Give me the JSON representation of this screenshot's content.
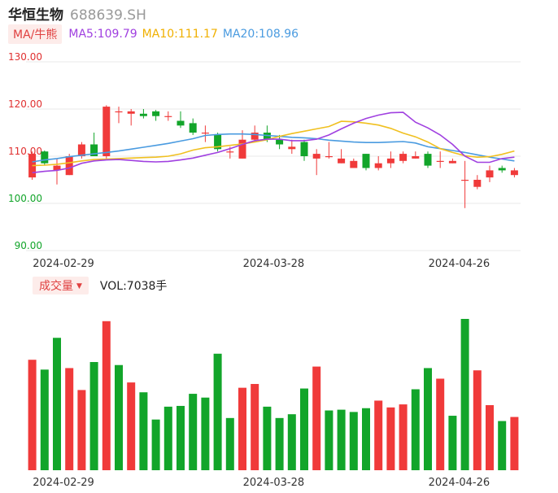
{
  "header": {
    "name": "华恒生物",
    "code": "688639.SH"
  },
  "ma_legend": {
    "button_label": "MA/牛熊",
    "ma5": "MA5:109.79",
    "ma10": "MA10:111.17",
    "ma20": "MA20:108.96"
  },
  "volume_legend": {
    "button_label": "成交量",
    "arrow": "▼",
    "vol_text": "VOL:7038手"
  },
  "colors": {
    "up": "#f03a3a",
    "down": "#12a52a",
    "ma5": "#a040e0",
    "ma10": "#f0c020",
    "ma20": "#4a9be0",
    "grid": "#e8e8e8"
  },
  "chart_data": [
    {
      "type": "candlestick",
      "y_axis": {
        "min": 90,
        "max": 130,
        "ticks": [
          "90.00",
          "100.00",
          "110.00",
          "120.00",
          "130.00"
        ]
      },
      "x_labels": [
        {
          "index": 2,
          "label": "2024-02-29"
        },
        {
          "index": 19,
          "label": "2024-03-28"
        },
        {
          "index": 34,
          "label": "2024-04-26"
        }
      ],
      "candles": [
        {
          "o": 105.5,
          "c": 110.5,
          "h": 111.0,
          "l": 105.0
        },
        {
          "o": 111.0,
          "c": 108.5,
          "h": 111.2,
          "l": 108.0
        },
        {
          "o": 107.0,
          "c": 108.0,
          "h": 109.5,
          "l": 104.0
        },
        {
          "o": 106.0,
          "c": 110.0,
          "h": 110.5,
          "l": 106.0
        },
        {
          "o": 110.0,
          "c": 112.5,
          "h": 113.0,
          "l": 109.5
        },
        {
          "o": 112.5,
          "c": 110.0,
          "h": 115.0,
          "l": 110.0
        },
        {
          "o": 110.0,
          "c": 120.5,
          "h": 120.8,
          "l": 109.5
        },
        {
          "o": 119.5,
          "c": 119.5,
          "h": 120.5,
          "l": 117.0
        },
        {
          "o": 119.0,
          "c": 119.5,
          "h": 120.0,
          "l": 116.5
        },
        {
          "o": 119.0,
          "c": 118.5,
          "h": 120.0,
          "l": 118.0
        },
        {
          "o": 119.5,
          "c": 118.5,
          "h": 119.8,
          "l": 117.5
        },
        {
          "o": 118.5,
          "c": 118.5,
          "h": 119.5,
          "l": 117.5
        },
        {
          "o": 117.5,
          "c": 116.5,
          "h": 119.5,
          "l": 116.0
        },
        {
          "o": 117.0,
          "c": 115.0,
          "h": 118.0,
          "l": 114.5
        },
        {
          "o": 115.0,
          "c": 115.0,
          "h": 116.5,
          "l": 113.0
        },
        {
          "o": 114.5,
          "c": 111.5,
          "h": 115.0,
          "l": 111.0
        },
        {
          "o": 111.0,
          "c": 111.0,
          "h": 112.0,
          "l": 109.5
        },
        {
          "o": 109.5,
          "c": 113.5,
          "h": 115.5,
          "l": 109.5
        },
        {
          "o": 113.5,
          "c": 115.0,
          "h": 116.5,
          "l": 113.0
        },
        {
          "o": 115.0,
          "c": 113.5,
          "h": 116.5,
          "l": 113.0
        },
        {
          "o": 113.5,
          "c": 112.5,
          "h": 114.5,
          "l": 111.5
        },
        {
          "o": 111.5,
          "c": 112.0,
          "h": 113.5,
          "l": 110.5
        },
        {
          "o": 113.0,
          "c": 110.0,
          "h": 113.5,
          "l": 109.0
        },
        {
          "o": 109.5,
          "c": 110.5,
          "h": 111.5,
          "l": 106.0
        },
        {
          "o": 110.0,
          "c": 110.0,
          "h": 113.0,
          "l": 109.5
        },
        {
          "o": 108.5,
          "c": 109.5,
          "h": 111.5,
          "l": 108.5
        },
        {
          "o": 107.5,
          "c": 109.0,
          "h": 109.5,
          "l": 107.5
        },
        {
          "o": 110.5,
          "c": 107.5,
          "h": 110.5,
          "l": 107.0
        },
        {
          "o": 107.5,
          "c": 108.5,
          "h": 110.0,
          "l": 107.0
        },
        {
          "o": 108.5,
          "c": 109.5,
          "h": 111.0,
          "l": 107.5
        },
        {
          "o": 109.0,
          "c": 110.5,
          "h": 111.0,
          "l": 108.5
        },
        {
          "o": 109.5,
          "c": 110.0,
          "h": 111.0,
          "l": 109.5
        },
        {
          "o": 110.5,
          "c": 108.0,
          "h": 111.0,
          "l": 107.5
        },
        {
          "o": 109.0,
          "c": 109.0,
          "h": 111.0,
          "l": 107.5
        },
        {
          "o": 108.5,
          "c": 109.0,
          "h": 109.5,
          "l": 108.5
        },
        {
          "o": 105.0,
          "c": 105.0,
          "h": 109.0,
          "l": 99.0
        },
        {
          "o": 103.5,
          "c": 105.0,
          "h": 106.0,
          "l": 103.0
        },
        {
          "o": 105.5,
          "c": 107.0,
          "h": 108.0,
          "l": 104.5
        },
        {
          "o": 107.5,
          "c": 107.0,
          "h": 108.0,
          "l": 106.5
        },
        {
          "o": 106.0,
          "c": 107.0,
          "h": 107.5,
          "l": 105.5
        }
      ],
      "ma5": [
        106.5,
        106.8,
        107.0,
        107.5,
        108.5,
        109.0,
        109.2,
        109.3,
        109.1,
        108.9,
        108.8,
        108.9,
        109.2,
        109.6,
        110.2,
        110.8,
        111.6,
        112.5,
        113.3,
        113.6,
        113.6,
        113.3,
        113.3,
        113.6,
        114.5,
        115.8,
        117.0,
        118.0,
        118.7,
        119.2,
        119.3,
        117.2,
        116.0,
        114.5,
        112.5,
        110.0,
        108.7,
        108.7,
        109.5,
        109.8
      ],
      "ma10": [
        108.0,
        108.1,
        108.3,
        108.6,
        109.0,
        109.3,
        109.4,
        109.5,
        109.6,
        109.7,
        109.8,
        110.0,
        110.5,
        111.3,
        111.8,
        112.0,
        112.3,
        112.6,
        113.0,
        113.5,
        114.2,
        114.8,
        115.3,
        115.8,
        116.3,
        117.4,
        117.3,
        117.0,
        116.6,
        115.9,
        114.9,
        114.1,
        113.0,
        111.6,
        110.8,
        110.1,
        109.8,
        109.9,
        110.4,
        111.1
      ],
      "ma20": [
        108.8,
        109.2,
        109.5,
        109.9,
        110.2,
        110.5,
        110.8,
        111.1,
        111.5,
        111.9,
        112.3,
        112.7,
        113.2,
        113.7,
        114.4,
        114.6,
        114.7,
        114.7,
        114.6,
        114.4,
        114.2,
        114.0,
        113.9,
        113.7,
        113.4,
        113.2,
        113.0,
        112.9,
        112.9,
        113.0,
        113.1,
        112.8,
        112.0,
        111.6,
        111.2,
        110.8,
        110.3,
        109.8,
        109.4,
        109.0
      ]
    },
    {
      "type": "bar",
      "title": "成交量",
      "x_labels": [
        {
          "index": 2,
          "label": "2024-02-29"
        },
        {
          "index": 19,
          "label": "2024-03-28"
        },
        {
          "index": 34,
          "label": "2024-04-26"
        }
      ],
      "values": [
        14600,
        13300,
        17500,
        13500,
        10600,
        14300,
        19700,
        13900,
        11600,
        10300,
        6700,
        8400,
        8500,
        10100,
        9600,
        15400,
        6900,
        10900,
        11400,
        8400,
        6900,
        7400,
        10800,
        13700,
        7900,
        8000,
        7700,
        8200,
        9200,
        8300,
        8700,
        10700,
        13500,
        12100,
        7200,
        20000,
        13200,
        8600,
        6500,
        7038
      ],
      "direction": [
        "up",
        "down",
        "down",
        "up",
        "up",
        "down",
        "up",
        "down",
        "up",
        "down",
        "down",
        "down",
        "down",
        "down",
        "down",
        "down",
        "down",
        "up",
        "up",
        "down",
        "down",
        "down",
        "down",
        "up",
        "down",
        "down",
        "down",
        "down",
        "up",
        "up",
        "up",
        "down",
        "down",
        "up",
        "down",
        "down",
        "up",
        "up",
        "down",
        "up"
      ]
    }
  ]
}
